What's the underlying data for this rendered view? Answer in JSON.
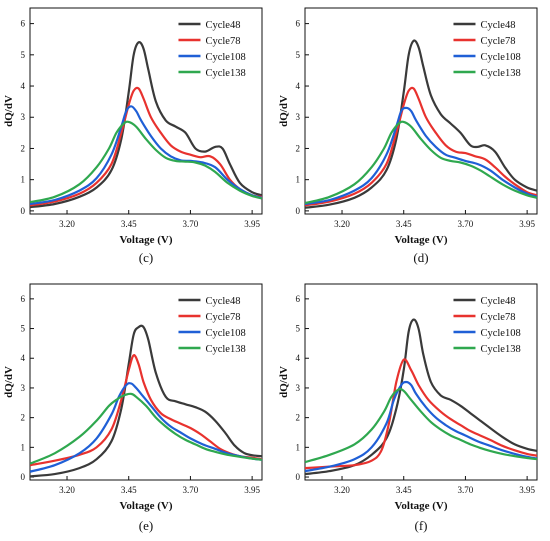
{
  "colors": {
    "Cycle48": "#3a3a3a",
    "Cycle78": "#e8322e",
    "Cycle108": "#1f5fd6",
    "Cycle138": "#2fa84f"
  },
  "chart_data": [
    {
      "type": "line",
      "panel_label": "(c)",
      "xlabel": "Voltage (V)",
      "ylabel": "dQ/dV",
      "xlim": [
        3.05,
        3.99
      ],
      "ylim": [
        -0.1,
        6.5
      ],
      "xticks": [
        "3.20",
        "3.45",
        "3.70",
        "3.95"
      ],
      "yticks": [
        "0",
        "1",
        "2",
        "3",
        "4",
        "5",
        "6"
      ],
      "legend_position": "top-right",
      "series": [
        {
          "name": "Cycle48",
          "x": [
            3.05,
            3.15,
            3.25,
            3.32,
            3.38,
            3.42,
            3.45,
            3.47,
            3.49,
            3.51,
            3.53,
            3.56,
            3.6,
            3.64,
            3.68,
            3.72,
            3.76,
            3.8,
            3.83,
            3.86,
            3.9,
            3.95,
            3.99
          ],
          "y": [
            0.12,
            0.22,
            0.45,
            0.75,
            1.3,
            2.3,
            3.8,
            5.0,
            5.4,
            5.2,
            4.5,
            3.5,
            2.9,
            2.7,
            2.5,
            2.0,
            1.9,
            2.05,
            2.0,
            1.5,
            0.9,
            0.6,
            0.5
          ]
        },
        {
          "name": "Cycle78",
          "x": [
            3.05,
            3.15,
            3.25,
            3.32,
            3.38,
            3.42,
            3.45,
            3.47,
            3.49,
            3.51,
            3.54,
            3.58,
            3.62,
            3.66,
            3.7,
            3.74,
            3.78,
            3.82,
            3.86,
            3.9,
            3.95,
            3.99
          ],
          "y": [
            0.18,
            0.3,
            0.55,
            0.9,
            1.5,
            2.5,
            3.4,
            3.85,
            3.92,
            3.6,
            3.0,
            2.5,
            2.1,
            1.9,
            1.8,
            1.72,
            1.75,
            1.5,
            1.0,
            0.7,
            0.5,
            0.45
          ]
        },
        {
          "name": "Cycle108",
          "x": [
            3.05,
            3.15,
            3.25,
            3.32,
            3.38,
            3.42,
            3.44,
            3.46,
            3.48,
            3.5,
            3.54,
            3.58,
            3.62,
            3.66,
            3.7,
            3.75,
            3.8,
            3.85,
            3.9,
            3.95,
            3.99
          ],
          "y": [
            0.22,
            0.35,
            0.65,
            1.05,
            1.8,
            2.7,
            3.2,
            3.35,
            3.2,
            2.9,
            2.4,
            2.0,
            1.75,
            1.62,
            1.6,
            1.55,
            1.4,
            1.0,
            0.7,
            0.5,
            0.42
          ]
        },
        {
          "name": "Cycle138",
          "x": [
            3.05,
            3.15,
            3.25,
            3.32,
            3.37,
            3.4,
            3.43,
            3.45,
            3.48,
            3.52,
            3.56,
            3.6,
            3.64,
            3.68,
            3.72,
            3.76,
            3.8,
            3.85,
            3.9,
            3.95,
            3.99
          ],
          "y": [
            0.28,
            0.45,
            0.85,
            1.4,
            2.0,
            2.5,
            2.8,
            2.85,
            2.7,
            2.3,
            1.95,
            1.7,
            1.6,
            1.58,
            1.55,
            1.45,
            1.25,
            0.9,
            0.65,
            0.48,
            0.4
          ]
        }
      ]
    },
    {
      "type": "line",
      "panel_label": "(d)",
      "xlabel": "Voltage (V)",
      "ylabel": "dQ/dV",
      "xlim": [
        3.05,
        3.99
      ],
      "ylim": [
        -0.1,
        6.5
      ],
      "xticks": [
        "3.20",
        "3.45",
        "3.70",
        "3.95"
      ],
      "yticks": [
        "0",
        "1",
        "2",
        "3",
        "4",
        "5",
        "6"
      ],
      "legend_position": "top-right",
      "series": [
        {
          "name": "Cycle48",
          "x": [
            3.05,
            3.15,
            3.25,
            3.32,
            3.38,
            3.42,
            3.45,
            3.47,
            3.49,
            3.51,
            3.53,
            3.56,
            3.6,
            3.64,
            3.68,
            3.72,
            3.75,
            3.78,
            3.82,
            3.86,
            3.9,
            3.95,
            3.99
          ],
          "y": [
            0.1,
            0.2,
            0.42,
            0.75,
            1.3,
            2.3,
            3.8,
            5.0,
            5.45,
            5.25,
            4.6,
            3.7,
            3.1,
            2.8,
            2.5,
            2.1,
            2.05,
            2.1,
            1.9,
            1.4,
            1.0,
            0.75,
            0.65
          ]
        },
        {
          "name": "Cycle78",
          "x": [
            3.05,
            3.15,
            3.25,
            3.32,
            3.38,
            3.42,
            3.45,
            3.47,
            3.49,
            3.51,
            3.54,
            3.58,
            3.62,
            3.66,
            3.7,
            3.74,
            3.78,
            3.82,
            3.86,
            3.9,
            3.95,
            3.99
          ],
          "y": [
            0.18,
            0.3,
            0.55,
            0.9,
            1.5,
            2.5,
            3.4,
            3.85,
            3.92,
            3.6,
            3.0,
            2.5,
            2.1,
            1.9,
            1.85,
            1.75,
            1.65,
            1.4,
            1.1,
            0.85,
            0.6,
            0.5
          ]
        },
        {
          "name": "Cycle108",
          "x": [
            3.05,
            3.15,
            3.25,
            3.32,
            3.38,
            3.42,
            3.44,
            3.46,
            3.48,
            3.5,
            3.54,
            3.58,
            3.62,
            3.66,
            3.7,
            3.75,
            3.8,
            3.85,
            3.9,
            3.95,
            3.99
          ],
          "y": [
            0.22,
            0.35,
            0.65,
            1.05,
            1.8,
            2.7,
            3.2,
            3.3,
            3.2,
            2.9,
            2.4,
            2.05,
            1.8,
            1.7,
            1.6,
            1.5,
            1.3,
            1.0,
            0.75,
            0.55,
            0.45
          ]
        },
        {
          "name": "Cycle138",
          "x": [
            3.05,
            3.15,
            3.25,
            3.32,
            3.37,
            3.4,
            3.43,
            3.45,
            3.48,
            3.52,
            3.56,
            3.6,
            3.64,
            3.68,
            3.72,
            3.76,
            3.8,
            3.85,
            3.9,
            3.95,
            3.99
          ],
          "y": [
            0.25,
            0.45,
            0.85,
            1.4,
            2.0,
            2.5,
            2.8,
            2.85,
            2.7,
            2.3,
            1.95,
            1.7,
            1.6,
            1.55,
            1.45,
            1.3,
            1.1,
            0.85,
            0.65,
            0.5,
            0.42
          ]
        }
      ]
    },
    {
      "type": "line",
      "panel_label": "(e)",
      "xlabel": "Voltage (V)",
      "ylabel": "dQ/dV",
      "xlim": [
        3.05,
        3.99
      ],
      "ylim": [
        -0.1,
        6.5
      ],
      "xticks": [
        "3.20",
        "3.45",
        "3.70",
        "3.95"
      ],
      "yticks": [
        "0",
        "1",
        "2",
        "3",
        "4",
        "5",
        "6"
      ],
      "legend_position": "top-right",
      "series": [
        {
          "name": "Cycle48",
          "x": [
            3.05,
            3.15,
            3.25,
            3.32,
            3.38,
            3.42,
            3.45,
            3.47,
            3.49,
            3.51,
            3.53,
            3.56,
            3.6,
            3.64,
            3.68,
            3.72,
            3.76,
            3.8,
            3.84,
            3.88,
            3.92,
            3.96,
            3.99
          ],
          "y": [
            0.02,
            0.1,
            0.3,
            0.6,
            1.2,
            2.3,
            3.8,
            4.8,
            5.05,
            5.05,
            4.6,
            3.5,
            2.7,
            2.55,
            2.45,
            2.35,
            2.2,
            1.9,
            1.5,
            1.05,
            0.8,
            0.72,
            0.7
          ]
        },
        {
          "name": "Cycle78",
          "x": [
            3.05,
            3.15,
            3.25,
            3.32,
            3.38,
            3.42,
            3.45,
            3.47,
            3.49,
            3.51,
            3.54,
            3.58,
            3.62,
            3.66,
            3.7,
            3.74,
            3.78,
            3.82,
            3.86,
            3.9,
            3.95,
            3.99
          ],
          "y": [
            0.4,
            0.55,
            0.75,
            1.0,
            1.6,
            2.6,
            3.6,
            4.1,
            3.8,
            3.2,
            2.6,
            2.15,
            1.95,
            1.8,
            1.65,
            1.45,
            1.2,
            0.95,
            0.8,
            0.7,
            0.65,
            0.6
          ]
        },
        {
          "name": "Cycle108",
          "x": [
            3.05,
            3.15,
            3.25,
            3.32,
            3.38,
            3.41,
            3.44,
            3.46,
            3.48,
            3.5,
            3.54,
            3.58,
            3.62,
            3.66,
            3.7,
            3.75,
            3.8,
            3.85,
            3.9,
            3.95,
            3.99
          ],
          "y": [
            0.18,
            0.4,
            0.8,
            1.3,
            2.1,
            2.7,
            3.1,
            3.15,
            3.0,
            2.8,
            2.4,
            2.0,
            1.7,
            1.5,
            1.3,
            1.1,
            0.95,
            0.8,
            0.7,
            0.62,
            0.58
          ]
        },
        {
          "name": "Cycle138",
          "x": [
            3.05,
            3.15,
            3.25,
            3.32,
            3.37,
            3.4,
            3.43,
            3.46,
            3.48,
            3.52,
            3.56,
            3.6,
            3.64,
            3.68,
            3.72,
            3.76,
            3.8,
            3.85,
            3.9,
            3.95,
            3.99
          ],
          "y": [
            0.45,
            0.8,
            1.35,
            1.9,
            2.4,
            2.6,
            2.75,
            2.8,
            2.7,
            2.4,
            2.0,
            1.7,
            1.45,
            1.25,
            1.1,
            0.95,
            0.85,
            0.75,
            0.68,
            0.62,
            0.58
          ]
        }
      ]
    },
    {
      "type": "line",
      "panel_label": "(f)",
      "xlabel": "Voltage (V)",
      "ylabel": "dQ/dV",
      "xlim": [
        3.05,
        3.99
      ],
      "ylim": [
        -0.1,
        6.5
      ],
      "xticks": [
        "3.20",
        "3.45",
        "3.70",
        "3.95"
      ],
      "yticks": [
        "0",
        "1",
        "2",
        "3",
        "4",
        "5",
        "6"
      ],
      "legend_position": "top-right",
      "series": [
        {
          "name": "Cycle48",
          "x": [
            3.05,
            3.15,
            3.25,
            3.32,
            3.38,
            3.42,
            3.45,
            3.47,
            3.49,
            3.51,
            3.53,
            3.56,
            3.6,
            3.64,
            3.68,
            3.72,
            3.76,
            3.8,
            3.85,
            3.9,
            3.95,
            3.99
          ],
          "y": [
            0.1,
            0.2,
            0.4,
            0.75,
            1.3,
            2.3,
            3.6,
            4.9,
            5.3,
            5.0,
            4.1,
            3.2,
            2.75,
            2.6,
            2.4,
            2.15,
            1.9,
            1.65,
            1.35,
            1.1,
            0.95,
            0.88
          ]
        },
        {
          "name": "Cycle78",
          "x": [
            3.05,
            3.15,
            3.25,
            3.32,
            3.36,
            3.39,
            3.42,
            3.45,
            3.48,
            3.51,
            3.55,
            3.6,
            3.64,
            3.68,
            3.72,
            3.76,
            3.8,
            3.85,
            3.9,
            3.95,
            3.99
          ],
          "y": [
            0.3,
            0.35,
            0.4,
            0.55,
            0.9,
            1.8,
            3.2,
            3.95,
            3.6,
            3.1,
            2.6,
            2.2,
            1.95,
            1.75,
            1.55,
            1.4,
            1.25,
            1.05,
            0.9,
            0.78,
            0.72
          ]
        },
        {
          "name": "Cycle108",
          "x": [
            3.05,
            3.15,
            3.25,
            3.32,
            3.38,
            3.41,
            3.44,
            3.46,
            3.48,
            3.5,
            3.54,
            3.58,
            3.62,
            3.66,
            3.7,
            3.75,
            3.8,
            3.85,
            3.9,
            3.95,
            3.99
          ],
          "y": [
            0.2,
            0.35,
            0.6,
            1.0,
            1.8,
            2.6,
            3.1,
            3.2,
            3.1,
            2.8,
            2.35,
            2.0,
            1.75,
            1.55,
            1.4,
            1.2,
            1.05,
            0.9,
            0.78,
            0.68,
            0.62
          ]
        },
        {
          "name": "Cycle138",
          "x": [
            3.05,
            3.15,
            3.25,
            3.32,
            3.37,
            3.4,
            3.43,
            3.45,
            3.48,
            3.52,
            3.56,
            3.6,
            3.64,
            3.68,
            3.72,
            3.76,
            3.8,
            3.85,
            3.9,
            3.95,
            3.99
          ],
          "y": [
            0.5,
            0.75,
            1.1,
            1.6,
            2.2,
            2.7,
            2.95,
            2.9,
            2.6,
            2.2,
            1.85,
            1.6,
            1.4,
            1.25,
            1.1,
            0.98,
            0.88,
            0.78,
            0.7,
            0.64,
            0.6
          ]
        }
      ]
    }
  ]
}
